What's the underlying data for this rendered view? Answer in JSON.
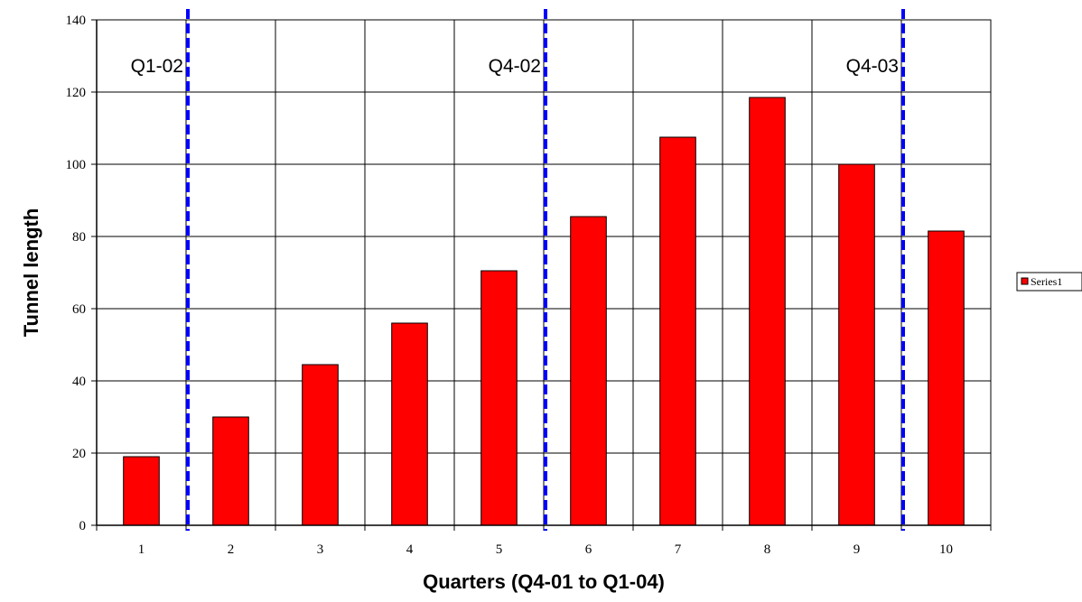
{
  "chart_data": {
    "type": "bar",
    "categories": [
      "1",
      "2",
      "3",
      "4",
      "5",
      "6",
      "7",
      "8",
      "9",
      "10"
    ],
    "series": [
      {
        "name": "Series1",
        "values": [
          19,
          30,
          44.5,
          56,
          70.5,
          85.5,
          107.5,
          118.5,
          100,
          81.5
        ],
        "color": "#ff0000"
      }
    ],
    "xlabel": "Quarters (Q4-01 to Q1-04)",
    "ylabel": "Tunnel length",
    "ylim": [
      0,
      140
    ],
    "yticks": [
      0,
      20,
      40,
      60,
      80,
      100,
      120,
      140
    ],
    "grid": true,
    "legend": {
      "position": "right",
      "entries": [
        "Series1"
      ]
    },
    "annotations": [
      {
        "label": "Q1-02",
        "between": [
          1,
          2
        ],
        "line_color": "#0000ff",
        "line_style": "dashed"
      },
      {
        "label": "Q4-02",
        "between": [
          5,
          6
        ],
        "line_color": "#0000ff",
        "line_style": "dashed"
      },
      {
        "label": "Q4-03",
        "between": [
          9,
          10
        ],
        "line_color": "#0000ff",
        "line_style": "dashed"
      }
    ]
  }
}
